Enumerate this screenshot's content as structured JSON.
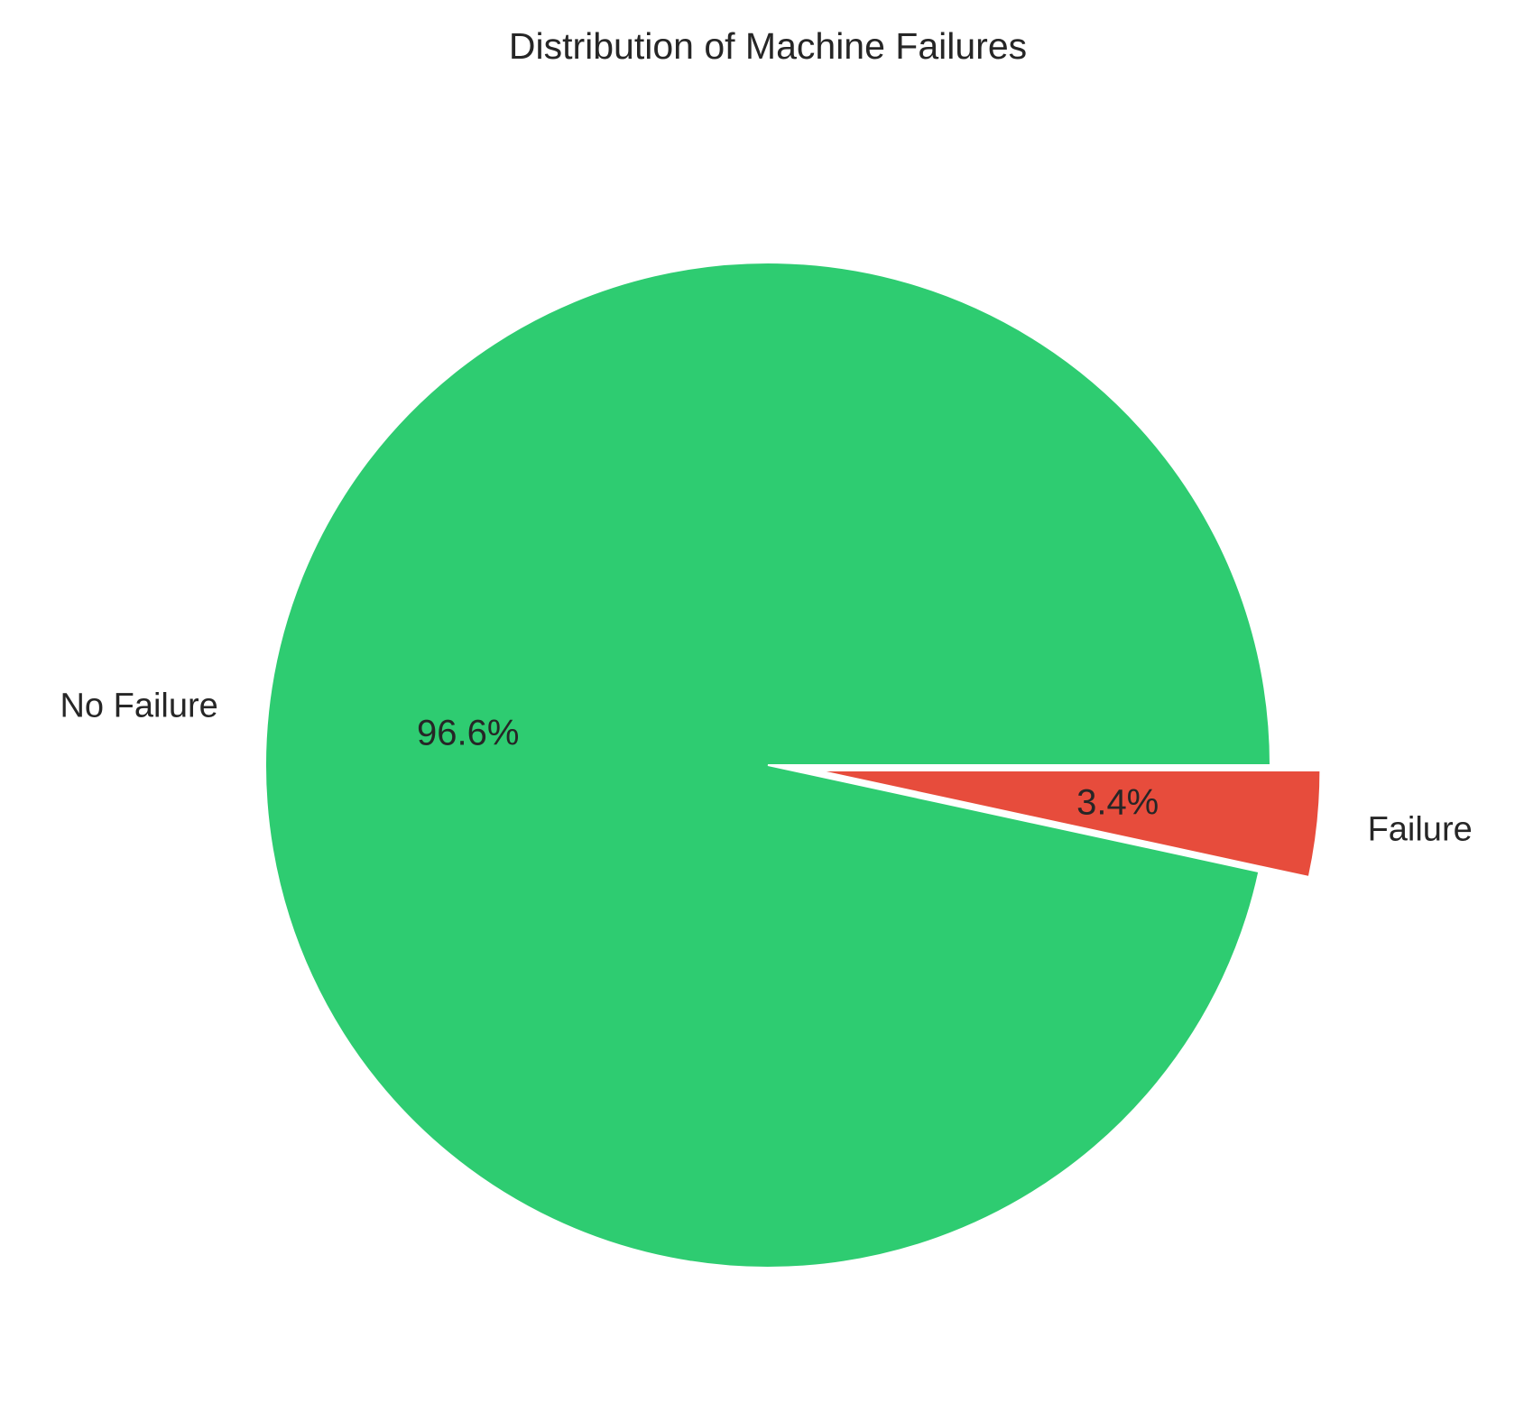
{
  "chart_data": {
    "type": "pie",
    "title": "Distribution of Machine Failures",
    "slices": [
      {
        "label": "No Failure",
        "value": 96.6,
        "pct_label": "96.6%",
        "color": "#2ecc71",
        "exploded": false
      },
      {
        "label": "Failure",
        "value": 3.4,
        "pct_label": "3.4%",
        "color": "#e74c3c",
        "exploded": true
      }
    ],
    "start_angle_deg": 0,
    "direction": "counterclockwise",
    "legend": "none"
  }
}
